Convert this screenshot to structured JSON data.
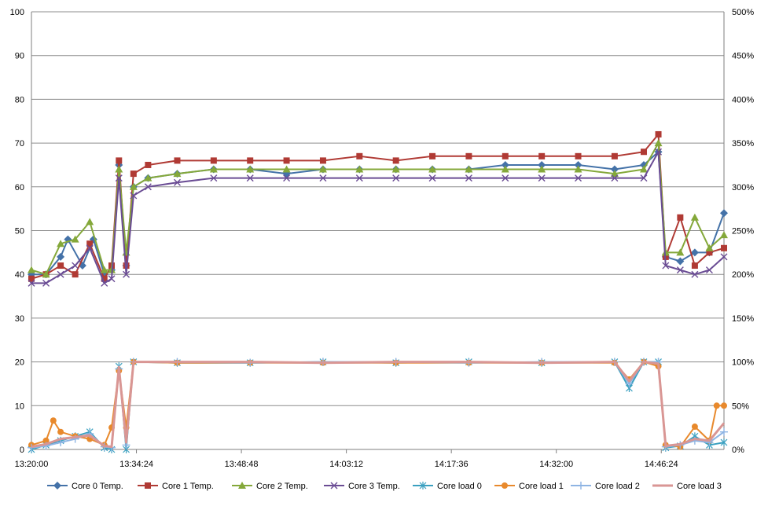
{
  "chart_data": {
    "type": "line",
    "x_ticks": [
      "13:20:00",
      "13:34:24",
      "13:48:48",
      "14:03:12",
      "14:17:36",
      "14:32:00",
      "14:46:24"
    ],
    "xlim": [
      "13:20:00",
      "14:55:00"
    ],
    "left_axis": {
      "ylim": [
        0,
        100
      ],
      "ticks": [
        "0",
        "10",
        "20",
        "30",
        "40",
        "50",
        "60",
        "70",
        "80",
        "90",
        "100"
      ]
    },
    "right_axis": {
      "ylim": [
        0,
        500
      ],
      "ticks": [
        "0%",
        "50%",
        "100%",
        "150%",
        "200%",
        "250%",
        "300%",
        "350%",
        "400%",
        "450%",
        "500%"
      ]
    },
    "grid": true,
    "legend_position": "bottom",
    "series": [
      {
        "name": "Core 0 Temp.",
        "axis": "left",
        "color": "#4472A8",
        "marker": "diamond",
        "points": [
          [
            "13:20:00",
            40
          ],
          [
            "13:22:00",
            40
          ],
          [
            "13:24:00",
            44
          ],
          [
            "13:25:00",
            48
          ],
          [
            "13:27:00",
            42
          ],
          [
            "13:28:30",
            48
          ],
          [
            "13:30:00",
            40
          ],
          [
            "13:31:00",
            41
          ],
          [
            "13:32:00",
            65
          ],
          [
            "13:33:00",
            42
          ],
          [
            "13:34:00",
            60
          ],
          [
            "13:36:00",
            62
          ],
          [
            "13:40:00",
            63
          ],
          [
            "13:45:00",
            64
          ],
          [
            "13:50:00",
            64
          ],
          [
            "13:55:00",
            63
          ],
          [
            "14:00:00",
            64
          ],
          [
            "14:05:00",
            64
          ],
          [
            "14:10:00",
            64
          ],
          [
            "14:15:00",
            64
          ],
          [
            "14:20:00",
            64
          ],
          [
            "14:25:00",
            65
          ],
          [
            "14:30:00",
            65
          ],
          [
            "14:35:00",
            65
          ],
          [
            "14:40:00",
            64
          ],
          [
            "14:44:00",
            65
          ],
          [
            "14:46:00",
            68
          ],
          [
            "14:47:00",
            44
          ],
          [
            "14:49:00",
            43
          ],
          [
            "14:51:00",
            45
          ],
          [
            "14:53:00",
            45
          ],
          [
            "14:55:00",
            54
          ]
        ]
      },
      {
        "name": "Core 1 Temp.",
        "axis": "left",
        "color": "#B03A34",
        "marker": "square",
        "points": [
          [
            "13:20:00",
            39
          ],
          [
            "13:22:00",
            40
          ],
          [
            "13:24:00",
            42
          ],
          [
            "13:26:00",
            40
          ],
          [
            "13:28:00",
            47
          ],
          [
            "13:30:00",
            39
          ],
          [
            "13:31:00",
            42
          ],
          [
            "13:32:00",
            66
          ],
          [
            "13:33:00",
            42
          ],
          [
            "13:34:00",
            63
          ],
          [
            "13:36:00",
            65
          ],
          [
            "13:40:00",
            66
          ],
          [
            "13:45:00",
            66
          ],
          [
            "13:50:00",
            66
          ],
          [
            "13:55:00",
            66
          ],
          [
            "14:00:00",
            66
          ],
          [
            "14:05:00",
            67
          ],
          [
            "14:10:00",
            66
          ],
          [
            "14:15:00",
            67
          ],
          [
            "14:20:00",
            67
          ],
          [
            "14:25:00",
            67
          ],
          [
            "14:30:00",
            67
          ],
          [
            "14:35:00",
            67
          ],
          [
            "14:40:00",
            67
          ],
          [
            "14:44:00",
            68
          ],
          [
            "14:46:00",
            72
          ],
          [
            "14:47:00",
            44
          ],
          [
            "14:49:00",
            53
          ],
          [
            "14:51:00",
            42
          ],
          [
            "14:53:00",
            45
          ],
          [
            "14:55:00",
            46
          ]
        ]
      },
      {
        "name": "Core 2 Temp.",
        "axis": "left",
        "color": "#84A83A",
        "marker": "triangle",
        "points": [
          [
            "13:20:00",
            41
          ],
          [
            "13:22:00",
            40
          ],
          [
            "13:24:00",
            47
          ],
          [
            "13:26:00",
            48
          ],
          [
            "13:28:00",
            52
          ],
          [
            "13:30:00",
            41
          ],
          [
            "13:31:00",
            41
          ],
          [
            "13:32:00",
            64
          ],
          [
            "13:33:00",
            45
          ],
          [
            "13:34:00",
            60
          ],
          [
            "13:36:00",
            62
          ],
          [
            "13:40:00",
            63
          ],
          [
            "13:45:00",
            64
          ],
          [
            "13:50:00",
            64
          ],
          [
            "13:55:00",
            64
          ],
          [
            "14:00:00",
            64
          ],
          [
            "14:05:00",
            64
          ],
          [
            "14:10:00",
            64
          ],
          [
            "14:15:00",
            64
          ],
          [
            "14:20:00",
            64
          ],
          [
            "14:25:00",
            64
          ],
          [
            "14:30:00",
            64
          ],
          [
            "14:35:00",
            64
          ],
          [
            "14:40:00",
            63
          ],
          [
            "14:44:00",
            64
          ],
          [
            "14:46:00",
            70
          ],
          [
            "14:47:00",
            45
          ],
          [
            "14:49:00",
            45
          ],
          [
            "14:51:00",
            53
          ],
          [
            "14:53:00",
            46
          ],
          [
            "14:55:00",
            49
          ]
        ]
      },
      {
        "name": "Core 3 Temp.",
        "axis": "left",
        "color": "#6A4C94",
        "marker": "x",
        "points": [
          [
            "13:20:00",
            38
          ],
          [
            "13:22:00",
            38
          ],
          [
            "13:24:00",
            40
          ],
          [
            "13:26:00",
            42
          ],
          [
            "13:28:00",
            46
          ],
          [
            "13:30:00",
            38
          ],
          [
            "13:31:00",
            39
          ],
          [
            "13:32:00",
            62
          ],
          [
            "13:33:00",
            40
          ],
          [
            "13:34:00",
            58
          ],
          [
            "13:36:00",
            60
          ],
          [
            "13:40:00",
            61
          ],
          [
            "13:45:00",
            62
          ],
          [
            "13:50:00",
            62
          ],
          [
            "13:55:00",
            62
          ],
          [
            "14:00:00",
            62
          ],
          [
            "14:05:00",
            62
          ],
          [
            "14:10:00",
            62
          ],
          [
            "14:15:00",
            62
          ],
          [
            "14:20:00",
            62
          ],
          [
            "14:25:00",
            62
          ],
          [
            "14:30:00",
            62
          ],
          [
            "14:35:00",
            62
          ],
          [
            "14:40:00",
            62
          ],
          [
            "14:44:00",
            62
          ],
          [
            "14:46:00",
            68
          ],
          [
            "14:47:00",
            42
          ],
          [
            "14:49:00",
            41
          ],
          [
            "14:51:00",
            40
          ],
          [
            "14:53:00",
            41
          ],
          [
            "14:55:00",
            44
          ]
        ]
      },
      {
        "name": "Core load 0",
        "axis": "right",
        "color": "#3AA0C0",
        "marker": "star",
        "points": [
          [
            "13:20:00",
            0
          ],
          [
            "13:22:00",
            5
          ],
          [
            "13:24:00",
            10
          ],
          [
            "13:26:00",
            15
          ],
          [
            "13:28:00",
            20
          ],
          [
            "13:30:00",
            2
          ],
          [
            "13:31:00",
            0
          ],
          [
            "13:32:00",
            95
          ],
          [
            "13:33:00",
            0
          ],
          [
            "13:34:00",
            100
          ],
          [
            "13:40:00",
            99
          ],
          [
            "13:50:00",
            99
          ],
          [
            "14:00:00",
            100
          ],
          [
            "14:10:00",
            99
          ],
          [
            "14:20:00",
            100
          ],
          [
            "14:30:00",
            99
          ],
          [
            "14:40:00",
            100
          ],
          [
            "14:42:00",
            70
          ],
          [
            "14:44:00",
            100
          ],
          [
            "14:46:00",
            100
          ],
          [
            "14:47:00",
            2
          ],
          [
            "14:49:00",
            4
          ],
          [
            "14:51:00",
            15
          ],
          [
            "14:53:00",
            5
          ],
          [
            "14:55:00",
            8
          ]
        ]
      },
      {
        "name": "Core load 1",
        "axis": "right",
        "color": "#E8892C",
        "marker": "circle",
        "points": [
          [
            "13:20:00",
            5
          ],
          [
            "13:22:00",
            10
          ],
          [
            "13:23:00",
            33
          ],
          [
            "13:24:00",
            20
          ],
          [
            "13:26:00",
            15
          ],
          [
            "13:28:00",
            12
          ],
          [
            "13:30:00",
            5
          ],
          [
            "13:31:00",
            25
          ],
          [
            "13:32:00",
            90
          ],
          [
            "13:33:00",
            25
          ],
          [
            "13:34:00",
            100
          ],
          [
            "13:40:00",
            99
          ],
          [
            "13:50:00",
            99
          ],
          [
            "14:00:00",
            99
          ],
          [
            "14:10:00",
            99
          ],
          [
            "14:20:00",
            99
          ],
          [
            "14:30:00",
            99
          ],
          [
            "14:40:00",
            99
          ],
          [
            "14:42:00",
            80
          ],
          [
            "14:44:00",
            100
          ],
          [
            "14:46:00",
            95
          ],
          [
            "14:47:00",
            5
          ],
          [
            "14:49:00",
            3
          ],
          [
            "14:51:00",
            26
          ],
          [
            "14:53:00",
            10
          ],
          [
            "14:54:00",
            50
          ],
          [
            "14:55:00",
            50
          ]
        ]
      },
      {
        "name": "Core load 2",
        "axis": "right",
        "color": "#8EB4E3",
        "marker": "plus",
        "points": [
          [
            "13:20:00",
            2
          ],
          [
            "13:22:00",
            4
          ],
          [
            "13:24:00",
            8
          ],
          [
            "13:26:00",
            12
          ],
          [
            "13:28:00",
            18
          ],
          [
            "13:30:00",
            3
          ],
          [
            "13:31:00",
            2
          ],
          [
            "13:32:00",
            92
          ],
          [
            "13:33:00",
            5
          ],
          [
            "13:34:00",
            100
          ],
          [
            "13:40:00",
            100
          ],
          [
            "13:50:00",
            99
          ],
          [
            "14:00:00",
            100
          ],
          [
            "14:10:00",
            100
          ],
          [
            "14:20:00",
            99
          ],
          [
            "14:30:00",
            100
          ],
          [
            "14:40:00",
            100
          ],
          [
            "14:42:00",
            75
          ],
          [
            "14:44:00",
            100
          ],
          [
            "14:46:00",
            100
          ],
          [
            "14:47:00",
            3
          ],
          [
            "14:49:00",
            5
          ],
          [
            "14:51:00",
            10
          ],
          [
            "14:53:00",
            8
          ],
          [
            "14:55:00",
            20
          ]
        ]
      },
      {
        "name": "Core load 3",
        "axis": "right",
        "color": "#D99694",
        "marker": "line",
        "points": [
          [
            "13:20:00",
            3
          ],
          [
            "13:22:00",
            6
          ],
          [
            "13:24:00",
            12
          ],
          [
            "13:26:00",
            14
          ],
          [
            "13:28:00",
            16
          ],
          [
            "13:30:00",
            4
          ],
          [
            "13:31:00",
            3
          ],
          [
            "13:32:00",
            94
          ],
          [
            "13:33:00",
            8
          ],
          [
            "13:34:00",
            100
          ],
          [
            "13:40:00",
            100
          ],
          [
            "13:50:00",
            100
          ],
          [
            "14:00:00",
            99
          ],
          [
            "14:10:00",
            100
          ],
          [
            "14:20:00",
            100
          ],
          [
            "14:30:00",
            99
          ],
          [
            "14:40:00",
            100
          ],
          [
            "14:42:00",
            78
          ],
          [
            "14:44:00",
            100
          ],
          [
            "14:46:00",
            98
          ],
          [
            "14:47:00",
            4
          ],
          [
            "14:49:00",
            6
          ],
          [
            "14:51:00",
            12
          ],
          [
            "14:53:00",
            10
          ],
          [
            "14:55:00",
            30
          ]
        ]
      }
    ]
  }
}
